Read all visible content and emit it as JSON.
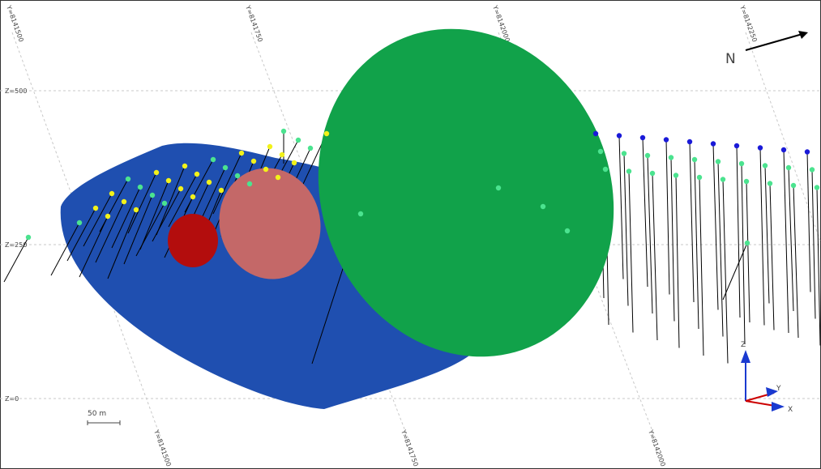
{
  "grid": {
    "top_labels": [
      "Y=8141500",
      "Y=8141750",
      "Y=8142000",
      "Y=8142250"
    ],
    "bottom_labels": [
      "Y=8141500",
      "Y=8141750",
      "Y=8142000"
    ],
    "z_labels": [
      "Z=500",
      "Z=250",
      "Z=0"
    ]
  },
  "north_label": "N",
  "scale_label": "50 m",
  "axes": {
    "z": "Z",
    "y": "Y",
    "x": "X"
  }
}
